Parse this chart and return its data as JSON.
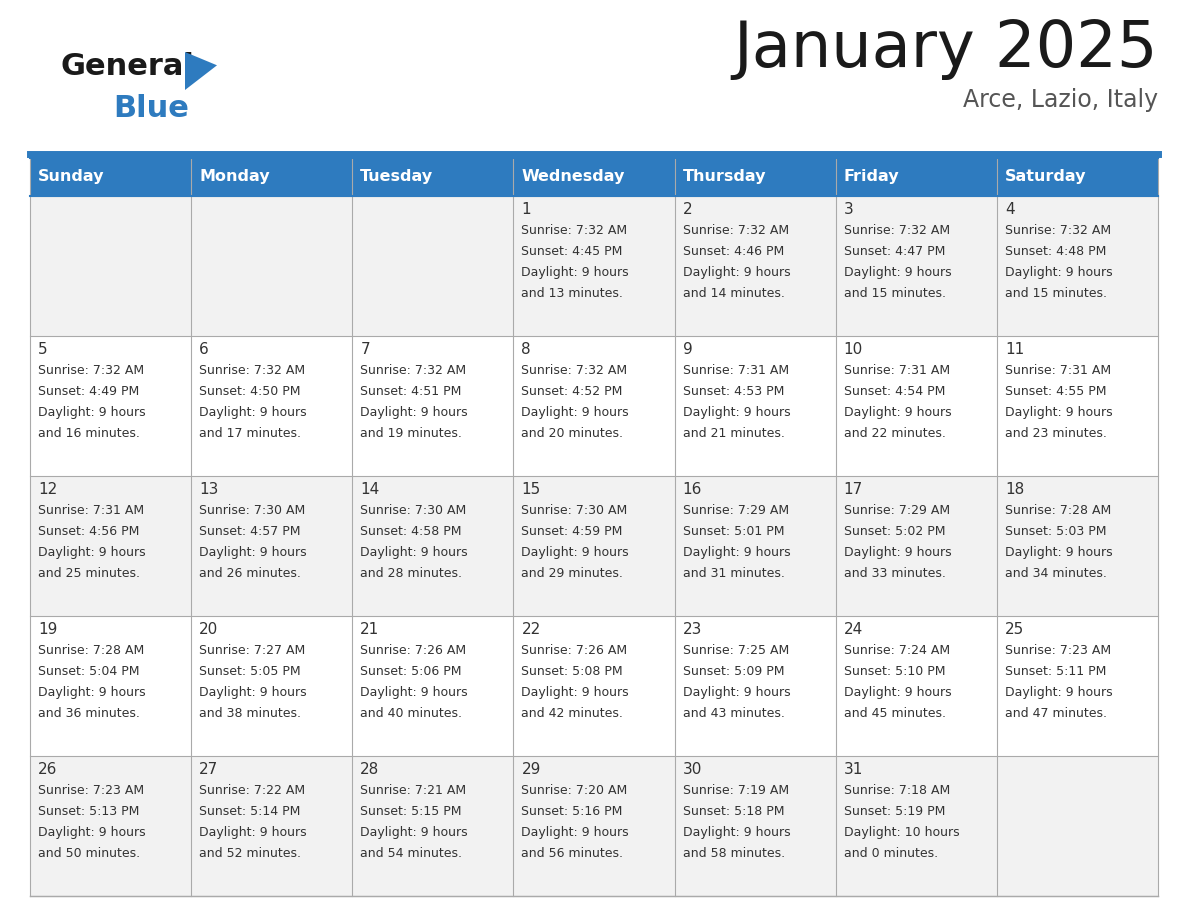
{
  "title": "January 2025",
  "subtitle": "Arce, Lazio, Italy",
  "days_of_week": [
    "Sunday",
    "Monday",
    "Tuesday",
    "Wednesday",
    "Thursday",
    "Friday",
    "Saturday"
  ],
  "header_bg": "#2E7BBF",
  "header_text": "#FFFFFF",
  "cell_bg_odd": "#F2F2F2",
  "cell_bg_even": "#FFFFFF",
  "border_color": "#2E7BBF",
  "row_border_color": "#AAAAAA",
  "text_color": "#333333",
  "logo_general_color": "#1A1A1A",
  "logo_blue_color": "#2E7BBF",
  "logo_triangle_color": "#2E7BBF",
  "title_color": "#1A1A1A",
  "subtitle_color": "#555555",
  "calendar_data": [
    [
      {
        "day": "",
        "sunrise": "",
        "sunset": "",
        "daylight": ""
      },
      {
        "day": "",
        "sunrise": "",
        "sunset": "",
        "daylight": ""
      },
      {
        "day": "",
        "sunrise": "",
        "sunset": "",
        "daylight": ""
      },
      {
        "day": "1",
        "sunrise": "7:32 AM",
        "sunset": "4:45 PM",
        "daylight": "9 hours and 13 minutes."
      },
      {
        "day": "2",
        "sunrise": "7:32 AM",
        "sunset": "4:46 PM",
        "daylight": "9 hours and 14 minutes."
      },
      {
        "day": "3",
        "sunrise": "7:32 AM",
        "sunset": "4:47 PM",
        "daylight": "9 hours and 15 minutes."
      },
      {
        "day": "4",
        "sunrise": "7:32 AM",
        "sunset": "4:48 PM",
        "daylight": "9 hours and 15 minutes."
      }
    ],
    [
      {
        "day": "5",
        "sunrise": "7:32 AM",
        "sunset": "4:49 PM",
        "daylight": "9 hours and 16 minutes."
      },
      {
        "day": "6",
        "sunrise": "7:32 AM",
        "sunset": "4:50 PM",
        "daylight": "9 hours and 17 minutes."
      },
      {
        "day": "7",
        "sunrise": "7:32 AM",
        "sunset": "4:51 PM",
        "daylight": "9 hours and 19 minutes."
      },
      {
        "day": "8",
        "sunrise": "7:32 AM",
        "sunset": "4:52 PM",
        "daylight": "9 hours and 20 minutes."
      },
      {
        "day": "9",
        "sunrise": "7:31 AM",
        "sunset": "4:53 PM",
        "daylight": "9 hours and 21 minutes."
      },
      {
        "day": "10",
        "sunrise": "7:31 AM",
        "sunset": "4:54 PM",
        "daylight": "9 hours and 22 minutes."
      },
      {
        "day": "11",
        "sunrise": "7:31 AM",
        "sunset": "4:55 PM",
        "daylight": "9 hours and 23 minutes."
      }
    ],
    [
      {
        "day": "12",
        "sunrise": "7:31 AM",
        "sunset": "4:56 PM",
        "daylight": "9 hours and 25 minutes."
      },
      {
        "day": "13",
        "sunrise": "7:30 AM",
        "sunset": "4:57 PM",
        "daylight": "9 hours and 26 minutes."
      },
      {
        "day": "14",
        "sunrise": "7:30 AM",
        "sunset": "4:58 PM",
        "daylight": "9 hours and 28 minutes."
      },
      {
        "day": "15",
        "sunrise": "7:30 AM",
        "sunset": "4:59 PM",
        "daylight": "9 hours and 29 minutes."
      },
      {
        "day": "16",
        "sunrise": "7:29 AM",
        "sunset": "5:01 PM",
        "daylight": "9 hours and 31 minutes."
      },
      {
        "day": "17",
        "sunrise": "7:29 AM",
        "sunset": "5:02 PM",
        "daylight": "9 hours and 33 minutes."
      },
      {
        "day": "18",
        "sunrise": "7:28 AM",
        "sunset": "5:03 PM",
        "daylight": "9 hours and 34 minutes."
      }
    ],
    [
      {
        "day": "19",
        "sunrise": "7:28 AM",
        "sunset": "5:04 PM",
        "daylight": "9 hours and 36 minutes."
      },
      {
        "day": "20",
        "sunrise": "7:27 AM",
        "sunset": "5:05 PM",
        "daylight": "9 hours and 38 minutes."
      },
      {
        "day": "21",
        "sunrise": "7:26 AM",
        "sunset": "5:06 PM",
        "daylight": "9 hours and 40 minutes."
      },
      {
        "day": "22",
        "sunrise": "7:26 AM",
        "sunset": "5:08 PM",
        "daylight": "9 hours and 42 minutes."
      },
      {
        "day": "23",
        "sunrise": "7:25 AM",
        "sunset": "5:09 PM",
        "daylight": "9 hours and 43 minutes."
      },
      {
        "day": "24",
        "sunrise": "7:24 AM",
        "sunset": "5:10 PM",
        "daylight": "9 hours and 45 minutes."
      },
      {
        "day": "25",
        "sunrise": "7:23 AM",
        "sunset": "5:11 PM",
        "daylight": "9 hours and 47 minutes."
      }
    ],
    [
      {
        "day": "26",
        "sunrise": "7:23 AM",
        "sunset": "5:13 PM",
        "daylight": "9 hours and 50 minutes."
      },
      {
        "day": "27",
        "sunrise": "7:22 AM",
        "sunset": "5:14 PM",
        "daylight": "9 hours and 52 minutes."
      },
      {
        "day": "28",
        "sunrise": "7:21 AM",
        "sunset": "5:15 PM",
        "daylight": "9 hours and 54 minutes."
      },
      {
        "day": "29",
        "sunrise": "7:20 AM",
        "sunset": "5:16 PM",
        "daylight": "9 hours and 56 minutes."
      },
      {
        "day": "30",
        "sunrise": "7:19 AM",
        "sunset": "5:18 PM",
        "daylight": "9 hours and 58 minutes."
      },
      {
        "day": "31",
        "sunrise": "7:18 AM",
        "sunset": "5:19 PM",
        "daylight": "10 hours and 0 minutes."
      },
      {
        "day": "",
        "sunrise": "",
        "sunset": "",
        "daylight": ""
      }
    ]
  ]
}
